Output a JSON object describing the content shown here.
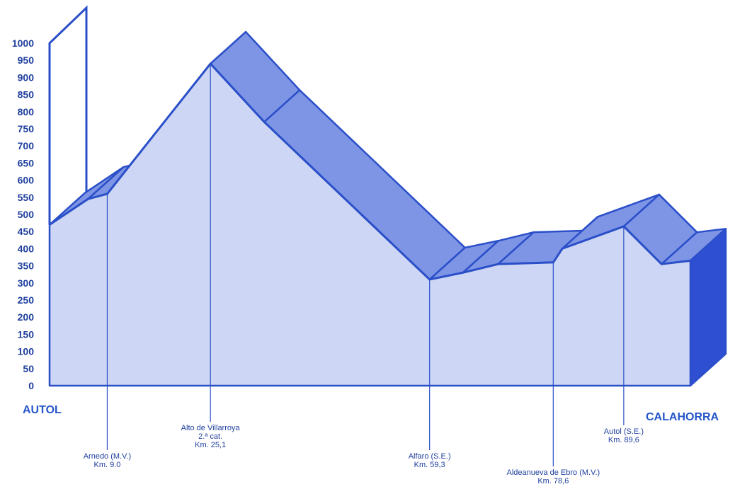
{
  "colors": {
    "front_face": "#cdd6f4",
    "top_face": "#7e95e6",
    "side_face": "#2f4fd2",
    "stroke": "#2a4fc8",
    "text": "#1f3f9f"
  },
  "chart_data": {
    "type": "area",
    "title": "",
    "xlabel": "",
    "ylabel": "",
    "ylim": [
      0,
      1000
    ],
    "yticks": [
      0,
      50,
      100,
      150,
      200,
      250,
      300,
      350,
      400,
      450,
      500,
      550,
      600,
      650,
      700,
      750,
      800,
      850,
      900,
      950,
      1000
    ],
    "xlim": [
      0,
      100
    ],
    "grid": false,
    "profile": [
      {
        "km": 0,
        "alt": 470
      },
      {
        "km": 6.0,
        "alt": 545
      },
      {
        "km": 9.0,
        "alt": 560
      },
      {
        "km": 25.1,
        "alt": 940
      },
      {
        "km": 33.5,
        "alt": 770
      },
      {
        "km": 59.3,
        "alt": 310
      },
      {
        "km": 64.5,
        "alt": 330
      },
      {
        "km": 70.0,
        "alt": 355
      },
      {
        "km": 78.6,
        "alt": 360
      },
      {
        "km": 80.0,
        "alt": 400
      },
      {
        "km": 89.6,
        "alt": 465
      },
      {
        "km": 95.5,
        "alt": 355
      },
      {
        "km": 100,
        "alt": 365
      }
    ],
    "start_label": "AUTOL",
    "end_label": "CALAHORRA",
    "points": [
      {
        "km": 9.0,
        "lines": [
          "Arnedo (M.V.)",
          "Km. 9.0"
        ]
      },
      {
        "km": 25.1,
        "lines": [
          "Alto de Villarroya",
          "2.ª cat.",
          "Km. 25,1"
        ]
      },
      {
        "km": 59.3,
        "lines": [
          "Alfaro (S.E.)",
          "Km. 59,3"
        ]
      },
      {
        "km": 78.6,
        "lines": [
          "Aldeanueva de Ebro (M.V.)",
          "Km. 78,6"
        ]
      },
      {
        "km": 89.6,
        "lines": [
          "Autol (S.E.)",
          "Km. 89,6"
        ]
      }
    ]
  }
}
